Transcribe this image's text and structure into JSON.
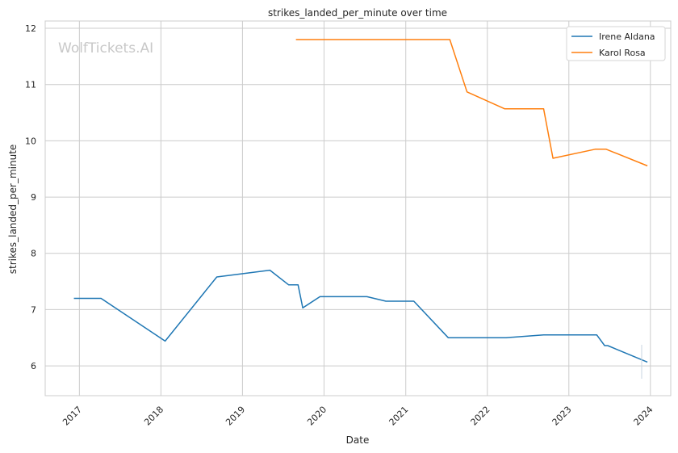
{
  "chart_data": {
    "type": "line",
    "title": "strikes_landed_per_minute over time",
    "xlabel": "Date",
    "ylabel": "strikes_landed_per_minute",
    "watermark": "WolfTickets.AI",
    "x_ticks": [
      "2017",
      "2018",
      "2019",
      "2020",
      "2021",
      "2022",
      "2023",
      "2024"
    ],
    "y_ticks": [
      "6",
      "7",
      "8",
      "9",
      "10",
      "11",
      "12"
    ],
    "xlim": [
      "2016-08-01",
      "2024-04-01"
    ],
    "ylim": [
      5.47,
      12.13
    ],
    "grid": true,
    "legend_position": "top-right",
    "series": [
      {
        "name": "Irene Aldana",
        "color": "#1f77b4",
        "points": [
          [
            "2016-12-10",
            7.2
          ],
          [
            "2017-04-08",
            7.2
          ],
          [
            "2018-01-20",
            6.44
          ],
          [
            "2018-09-08",
            7.58
          ],
          [
            "2019-05-04",
            7.7
          ],
          [
            "2019-07-27",
            7.44
          ],
          [
            "2019-09-07",
            7.44
          ],
          [
            "2019-09-28",
            7.03
          ],
          [
            "2019-12-14",
            7.23
          ],
          [
            "2020-07-11",
            7.23
          ],
          [
            "2020-10-04",
            7.15
          ],
          [
            "2021-02-06",
            7.15
          ],
          [
            "2021-07-10",
            6.5
          ],
          [
            "2022-03-26",
            6.5
          ],
          [
            "2022-09-10",
            6.55
          ],
          [
            "2023-05-06",
            6.55
          ],
          [
            "2023-06-10",
            6.36
          ],
          [
            "2023-06-24",
            6.36
          ],
          [
            "2023-12-16",
            6.07
          ]
        ]
      },
      {
        "name": "Karol Rosa",
        "color": "#ff7f0e",
        "points": [
          [
            "2019-08-31",
            11.8
          ],
          [
            "2021-07-17",
            11.8
          ],
          [
            "2021-10-02",
            10.87
          ],
          [
            "2022-03-19",
            10.57
          ],
          [
            "2022-09-10",
            10.57
          ],
          [
            "2022-10-22",
            9.69
          ],
          [
            "2023-04-29",
            9.85
          ],
          [
            "2023-06-17",
            9.85
          ],
          [
            "2023-12-16",
            9.56
          ]
        ]
      }
    ]
  }
}
